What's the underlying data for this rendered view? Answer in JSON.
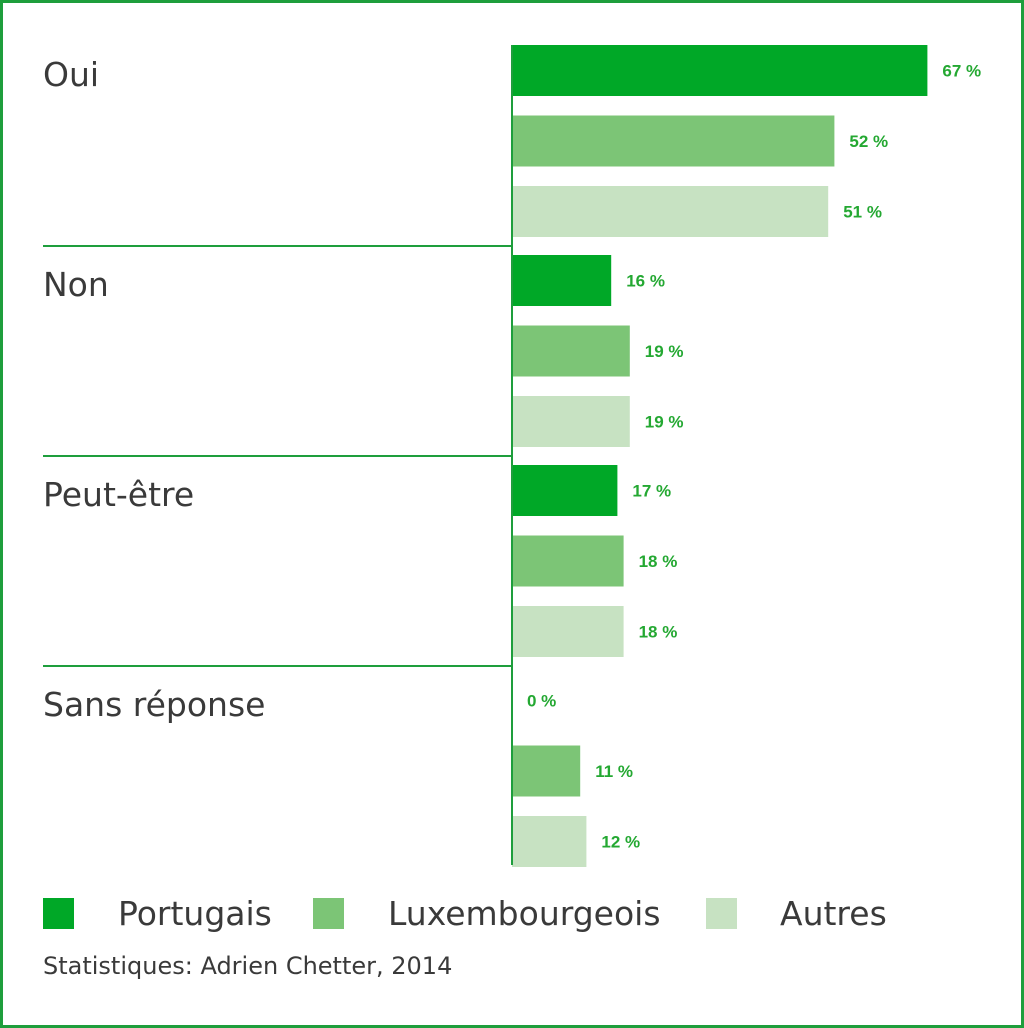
{
  "chart_data": {
    "type": "bar",
    "orientation": "horizontal",
    "categories": [
      "Oui",
      "Non",
      "Peut-être",
      "Sans réponse"
    ],
    "series": [
      {
        "name": "Portugais",
        "color": "#00a827",
        "values": [
          67,
          16,
          17,
          0
        ],
        "labels": [
          "67 %",
          "16 %",
          "17 %",
          "0 %"
        ]
      },
      {
        "name": "Luxembourgeois",
        "color": "#7cc576",
        "values": [
          52,
          19,
          18,
          11
        ],
        "labels": [
          "52 %",
          "19 %",
          "18 %",
          "11 %"
        ]
      },
      {
        "name": "Autres",
        "color": "#c7e2c2",
        "values": [
          51,
          19,
          18,
          12
        ],
        "labels": [
          "51 %",
          "19 %",
          "18 %",
          "12 %"
        ]
      }
    ],
    "xlim": [
      0,
      100
    ],
    "source": "Statistiques: Adrien Chetter, 2014"
  },
  "accent_color": "#1e9e3c",
  "value_label_color": "#24a832"
}
